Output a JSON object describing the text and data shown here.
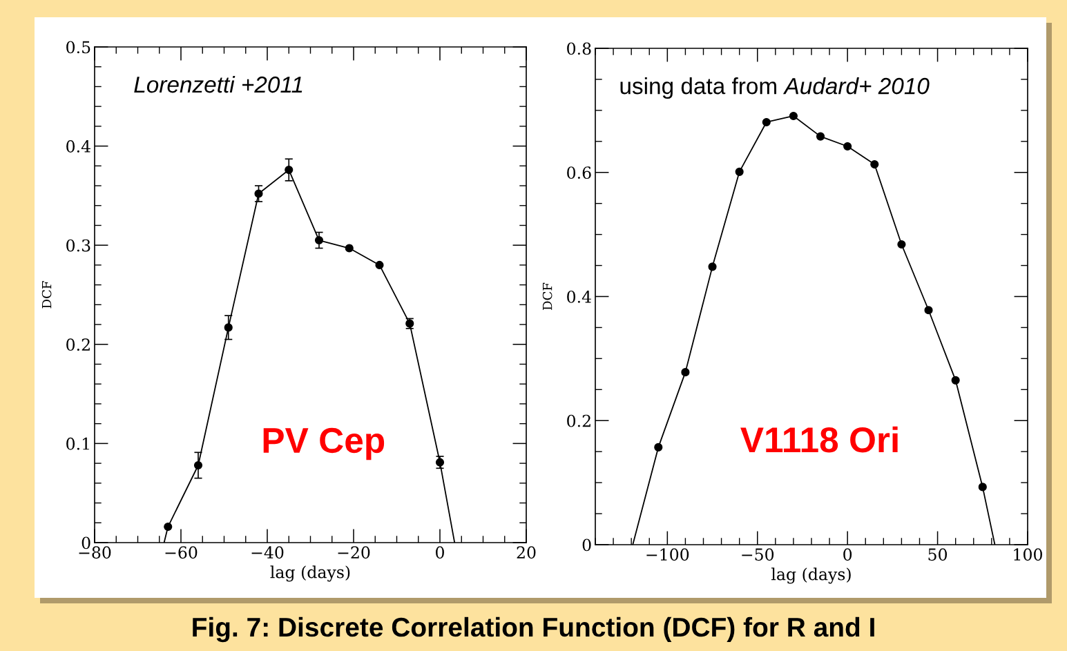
{
  "chart_data": [
    {
      "type": "scatter",
      "xlabel": "lag (days)",
      "ylabel": "DCF",
      "xlim": [
        -80,
        20
      ],
      "ylim": [
        0,
        0.5
      ],
      "xticks": [
        -80,
        {
          "value": -75,
          "label": null
        },
        {
          "value": -70,
          "label": null
        },
        {
          "value": -65,
          "label": null
        },
        -60,
        {
          "value": -55,
          "label": null
        },
        {
          "value": -50,
          "label": null
        },
        {
          "value": -45,
          "label": null
        },
        -40,
        {
          "value": -35,
          "label": null
        },
        {
          "value": -30,
          "label": null
        },
        {
          "value": -25,
          "label": null
        },
        -20,
        {
          "value": -15,
          "label": null
        },
        {
          "value": -10,
          "label": null
        },
        {
          "value": -5,
          "label": null
        },
        0,
        {
          "value": 5,
          "label": null
        },
        {
          "value": 10,
          "label": null
        },
        {
          "value": 15,
          "label": null
        },
        20
      ],
      "yticks": [
        0,
        {
          "value": 0.02,
          "label": null
        },
        {
          "value": 0.04,
          "label": null
        },
        {
          "value": 0.06,
          "label": null
        },
        {
          "value": 0.08,
          "label": null
        },
        0.1,
        {
          "value": 0.12,
          "label": null
        },
        {
          "value": 0.14,
          "label": null
        },
        {
          "value": 0.16,
          "label": null
        },
        {
          "value": 0.18,
          "label": null
        },
        0.2,
        {
          "value": 0.22,
          "label": null
        },
        {
          "value": 0.24,
          "label": null
        },
        {
          "value": 0.26,
          "label": null
        },
        {
          "value": 0.28,
          "label": null
        },
        0.3,
        {
          "value": 0.32,
          "label": null
        },
        {
          "value": 0.34,
          "label": null
        },
        {
          "value": 0.36,
          "label": null
        },
        {
          "value": 0.38,
          "label": null
        },
        0.4,
        {
          "value": 0.42,
          "label": null
        },
        {
          "value": 0.44,
          "label": null
        },
        {
          "value": 0.46,
          "label": null
        },
        {
          "value": 0.48,
          "label": null
        },
        0.5
      ],
      "grid": false,
      "line_style": "solid",
      "annotations": [
        "Lorenzetti +2011",
        "PV Cep",
        "Fig. 7: Discrete Correlation Function (DCF) for R and I"
      ],
      "series": [
        {
          "type": "line",
          "marker": "none",
          "color": "#000000",
          "x": [
            -63.9,
            -63,
            -56,
            -49,
            -42,
            -35,
            -28,
            -21,
            -14,
            -7,
            0,
            3.4
          ],
          "values": [
            0,
            0.016,
            0.078,
            0.217,
            0.352,
            0.376,
            0.305,
            0.297,
            0.28,
            0.221,
            0.081,
            0
          ]
        },
        {
          "marker": "circle",
          "color": "#000000",
          "x": [
            -63,
            -56,
            -49,
            -42,
            -35,
            -28,
            -21,
            -14,
            -7,
            0
          ],
          "values": [
            0.016,
            0.078,
            0.217,
            0.352,
            0.376,
            0.305,
            0.297,
            0.28,
            0.221,
            0.081
          ],
          "errors": [
            null,
            0.013,
            0.012,
            0.008,
            0.011,
            0.008,
            null,
            null,
            0.005,
            0.006
          ]
        }
      ]
    },
    {
      "type": "scatter",
      "xlabel": "lag (days)",
      "ylabel": "DCF",
      "xlim": [
        -140,
        100
      ],
      "ylim": [
        0,
        0.8
      ],
      "xticks": [
        {
          "value": -140,
          "label": null
        },
        {
          "value": -130,
          "label": null
        },
        {
          "value": -120,
          "label": null
        },
        {
          "value": -110,
          "label": null
        },
        -100,
        {
          "value": -90,
          "label": null
        },
        {
          "value": -80,
          "label": null
        },
        {
          "value": -70,
          "label": null
        },
        {
          "value": -60,
          "label": null
        },
        -50,
        {
          "value": -40,
          "label": null
        },
        {
          "value": -30,
          "label": null
        },
        {
          "value": -20,
          "label": null
        },
        {
          "value": -10,
          "label": null
        },
        0,
        {
          "value": 10,
          "label": null
        },
        {
          "value": 20,
          "label": null
        },
        {
          "value": 30,
          "label": null
        },
        {
          "value": 40,
          "label": null
        },
        50,
        {
          "value": 60,
          "label": null
        },
        {
          "value": 70,
          "label": null
        },
        {
          "value": 80,
          "label": null
        },
        {
          "value": 90,
          "label": null
        },
        100
      ],
      "yticks": [
        0,
        {
          "value": 0.05,
          "label": null
        },
        {
          "value": 0.1,
          "label": null
        },
        {
          "value": 0.15,
          "label": null
        },
        0.2,
        {
          "value": 0.25,
          "label": null
        },
        {
          "value": 0.3,
          "label": null
        },
        {
          "value": 0.35,
          "label": null
        },
        0.4,
        {
          "value": 0.45,
          "label": null
        },
        {
          "value": 0.5,
          "label": null
        },
        {
          "value": 0.55,
          "label": null
        },
        0.6,
        {
          "value": 0.65,
          "label": null
        },
        {
          "value": 0.7,
          "label": null
        },
        {
          "value": 0.75,
          "label": null
        },
        0.8
      ],
      "grid": false,
      "line_style": "solid",
      "annotations": [
        "using data from",
        "Audard+ 2010",
        "V1118 Ori"
      ],
      "series": [
        {
          "type": "line",
          "marker": "none",
          "color": "#000000",
          "x": [
            -119.2,
            -105,
            -90,
            -75,
            -60,
            -45,
            -30,
            -15,
            0,
            15,
            30,
            45,
            60,
            75,
            81.8
          ],
          "values": [
            0,
            0.157,
            0.278,
            0.448,
            0.601,
            0.681,
            0.691,
            0.658,
            0.642,
            0.613,
            0.484,
            0.378,
            0.265,
            0.093,
            0
          ]
        },
        {
          "marker": "circle",
          "color": "#000000",
          "x": [
            -105,
            -90,
            -75,
            -60,
            -45,
            -30,
            -15,
            0,
            15,
            30,
            45,
            60,
            75
          ],
          "values": [
            0.157,
            0.278,
            0.448,
            0.601,
            0.681,
            0.691,
            0.658,
            0.642,
            0.613,
            0.484,
            0.378,
            0.265,
            0.093
          ]
        }
      ]
    }
  ]
}
